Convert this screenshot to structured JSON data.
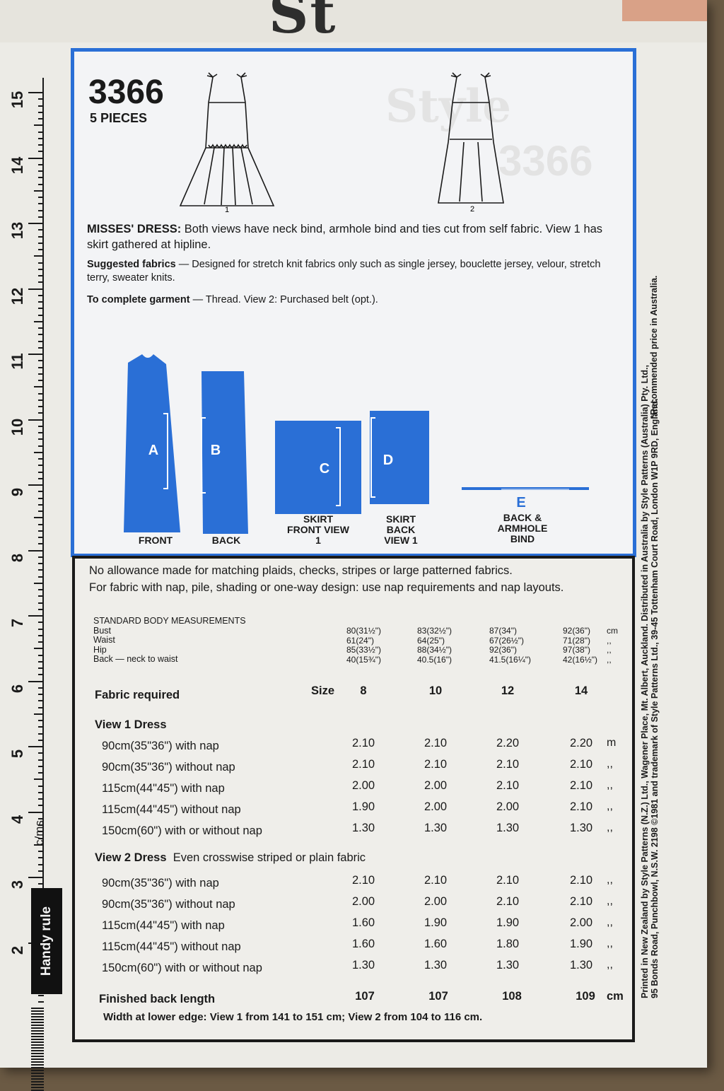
{
  "brand_partial": "St",
  "pattern_number": "3366",
  "pieces": "5 PIECES",
  "ghost": {
    "logo": "Style",
    "number": "3366"
  },
  "views": {
    "v1": "1",
    "v2": "2"
  },
  "description": {
    "title": "MISSES' DRESS:",
    "text": "Both views have neck bind, armhole bind and ties cut from self fabric. View 1 has skirt gathered at hipline.",
    "fabrics_label": "Suggested fabrics",
    "fabrics_text": "— Designed for stretch knit fabrics only such as single jersey, bouclette jersey, velour, stretch terry, sweater knits.",
    "complete_label": "To complete garment",
    "complete_text": "— Thread. View 2: Purchased belt (opt.)."
  },
  "pattern_pieces": [
    {
      "letter": "A",
      "label": "FRONT"
    },
    {
      "letter": "B",
      "label": "BACK"
    },
    {
      "letter": "C",
      "label": "SKIRT FRONT VIEW 1"
    },
    {
      "letter": "D",
      "label": "SKIRT BACK VIEW 1"
    },
    {
      "letter": "E",
      "label": "BACK & ARMHOLE BIND"
    }
  ],
  "notes": {
    "line1": "No allowance made for matching plaids, checks, stripes or large patterned fabrics.",
    "line2": "For fabric with nap, pile, shading or one-way design: use nap requirements and nap layouts."
  },
  "measurements": {
    "title": "STANDARD BODY MEASUREMENTS",
    "rows": [
      "Bust",
      "Waist",
      "Hip",
      "Back — neck to waist"
    ],
    "columns": [
      [
        "80(31½\")",
        "61(24\")",
        "85(33½\")",
        "40(15¾\")"
      ],
      [
        "83(32½\")",
        "64(25\")",
        "88(34½\")",
        "40.5(16\")"
      ],
      [
        "87(34\")",
        "67(26½\")",
        "92(36\")",
        "41.5(16¼\")"
      ],
      [
        "92(36\")",
        "71(28\")",
        "97(38\")",
        "42(16½\")"
      ]
    ],
    "units": [
      "cm",
      ",,",
      ",,",
      ",,"
    ]
  },
  "fabric_table": {
    "label": "Fabric required",
    "size_label": "Size",
    "sizes": [
      "8",
      "10",
      "12",
      "14"
    ],
    "view1": {
      "title": "View 1  Dress",
      "rows": [
        {
          "label": "90cm(35\"36\") with nap",
          "values": [
            "2.10",
            "2.10",
            "2.20",
            "2.20"
          ],
          "unit": "m"
        },
        {
          "label": "90cm(35\"36\") without nap",
          "values": [
            "2.10",
            "2.10",
            "2.10",
            "2.10"
          ],
          "unit": ",,"
        },
        {
          "label": "115cm(44\"45\") with nap",
          "values": [
            "2.00",
            "2.00",
            "2.10",
            "2.10"
          ],
          "unit": ",,"
        },
        {
          "label": "115cm(44\"45\") without nap",
          "values": [
            "1.90",
            "2.00",
            "2.00",
            "2.10"
          ],
          "unit": ",,"
        },
        {
          "label": "150cm(60\") with or without nap",
          "values": [
            "1.30",
            "1.30",
            "1.30",
            "1.30"
          ],
          "unit": ",,"
        }
      ]
    },
    "view2": {
      "title": "View 2  Dress",
      "subtitle": "Even crosswise striped or plain fabric",
      "rows": [
        {
          "label": "90cm(35\"36\") with nap",
          "values": [
            "2.10",
            "2.10",
            "2.10",
            "2.10"
          ],
          "unit": ",,"
        },
        {
          "label": "90cm(35\"36\") without nap",
          "values": [
            "2.00",
            "2.00",
            "2.10",
            "2.10"
          ],
          "unit": ",,"
        },
        {
          "label": "115cm(44\"45\") with nap",
          "values": [
            "1.60",
            "1.90",
            "1.90",
            "2.00"
          ],
          "unit": ",,"
        },
        {
          "label": "115cm(44\"45\") without nap",
          "values": [
            "1.60",
            "1.60",
            "1.80",
            "1.90"
          ],
          "unit": ",,"
        },
        {
          "label": "150cm(60\") with or without nap",
          "values": [
            "1.30",
            "1.30",
            "1.30",
            "1.30"
          ],
          "unit": ",,"
        }
      ]
    },
    "finished_label": "Finished back length",
    "finished_values": [
      "107",
      "107",
      "108",
      "109"
    ],
    "finished_unit": "cm",
    "width_text": "Width at lower edge: View 1 from 141 to 151 cm; View 2 from 104 to 116 cm."
  },
  "ruler": {
    "numbers": [
      "15",
      "14",
      "13",
      "12",
      "11",
      "10",
      "9",
      "8",
      "7",
      "6",
      "5",
      "4",
      "3",
      "2"
    ],
    "cms_label": "c/ms",
    "handy_label": "Handy rule"
  },
  "side_print": {
    "recommended": "*Recommended price in Australia.",
    "line1": "Printed in New Zealand by Style Patterns (N.Z.) Ltd., Wagener Place, Mt. Albert, Auckland. Distributed in Australia by Style Patterns (Australia) Pty. Ltd.,",
    "line2": "95 Bonds Road, Punchbowl, N.S.W. 2198  ©1981 and trademark of Style Patterns Ltd., 39-45 Tottenham Court Road, London W1P 9RD, England."
  },
  "colors": {
    "blue": "#2a6fd6",
    "paper": "#ecebe6",
    "ink": "#1a1a1a"
  }
}
